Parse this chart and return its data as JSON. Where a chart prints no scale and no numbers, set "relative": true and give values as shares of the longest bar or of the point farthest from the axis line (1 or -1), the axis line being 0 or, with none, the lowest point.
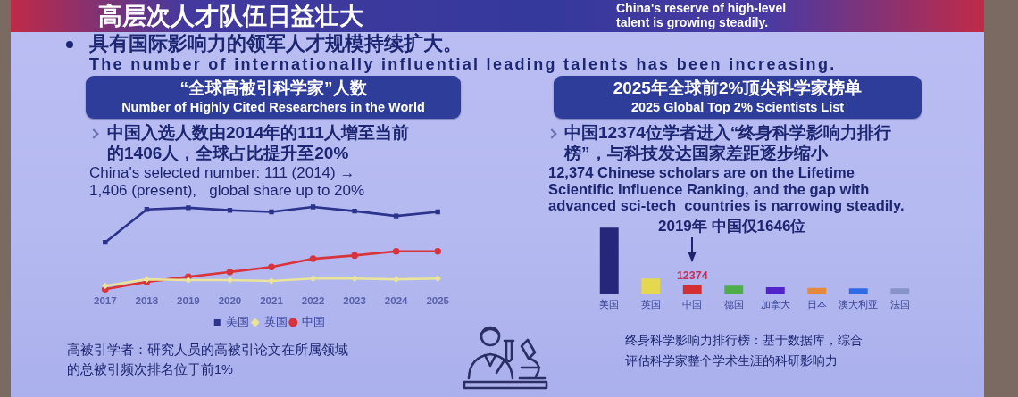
{
  "chart_data": [
    {
      "type": "other",
      "title": "高层次人才队伍日益壮大",
      "subtitle": "China's reserve of high-level\ntalent is growing steadily.",
      "annotations": [
        "具有国际影响力的领军人才规模持续扩大。",
        "The number of internationally influential leading talents has been increasing."
      ]
    },
    {
      "type": "line",
      "title": "“全球高被引科学家”人数",
      "subtitle": "Number of Highly Cited Researchers in the World",
      "categories": [
        "2017",
        "2018",
        "2019",
        "2020",
        "2021",
        "2022",
        "2023",
        "2024",
        "2025"
      ],
      "relative": true,
      "series": [
        {
          "name": "美国",
          "color": "#2b338c",
          "marker": "square",
          "values": [
            0.57,
            0.97,
            0.99,
            0.96,
            0.94,
            1,
            0.95,
            0.89,
            0.94
          ]
        },
        {
          "name": "英国",
          "color": "#e9e39b",
          "marker": "diamond",
          "values": [
            0.04,
            0.12,
            0.11,
            0.11,
            0.1,
            0.13,
            0.13,
            0.12,
            0.13
          ]
        },
        {
          "name": "中国",
          "color": "#d8343c",
          "marker": "circle",
          "values": [
            0,
            0.09,
            0.15,
            0.21,
            0.27,
            0.37,
            0.41,
            0.46,
            0.46
          ]
        }
      ],
      "grid": false,
      "legend": "bottom",
      "annotations": [
        "中国入选人数由2014年的111人增至当前的1406人，全球占比提升至20%",
        "China's selected number: 111 (2014) →\n1,406 (present),   global share up to 20%",
        "高被引学者：研究人员的高被引论文在所属领域的总被引频次排名位于前1%"
      ]
    },
    {
      "type": "bar",
      "title": "2025年全球前2%顶尖科学家榜单",
      "subtitle": "2025 Global Top 2% Scientists List",
      "categories": [
        "美国",
        "英国",
        "中国",
        "德国",
        "加拿大",
        "日本",
        "澳大利亚",
        "法国"
      ],
      "values": [
        85000,
        20000,
        12374,
        11000,
        8800,
        8100,
        7400,
        7400
      ],
      "colors": [
        "#26267a",
        "#e6d84e",
        "#d42f33",
        "#4fae4a",
        "#5223c8",
        "#e58a3c",
        "#2f6be6",
        "#8893c9"
      ],
      "value_labels": [
        null,
        null,
        "12374",
        null,
        null,
        null,
        null,
        null
      ],
      "tick_labels": "x",
      "grid": false,
      "annotations": [
        "中国12374位学者进入“终身科学影响力排行榜”，与科技发达国家差距逐步缩小",
        "12,374 Chinese scholars are on the Lifetime\nScientific Influence Ranking, and the gap with\nadvanced sci-tech  countries is narrowing steadily.",
        "终身科学影响力排行榜：基于数据库，综合评估科学家整个学术生涯的科研影响力",
        "2019年 中国仅1646位"
      ]
    }
  ]
}
